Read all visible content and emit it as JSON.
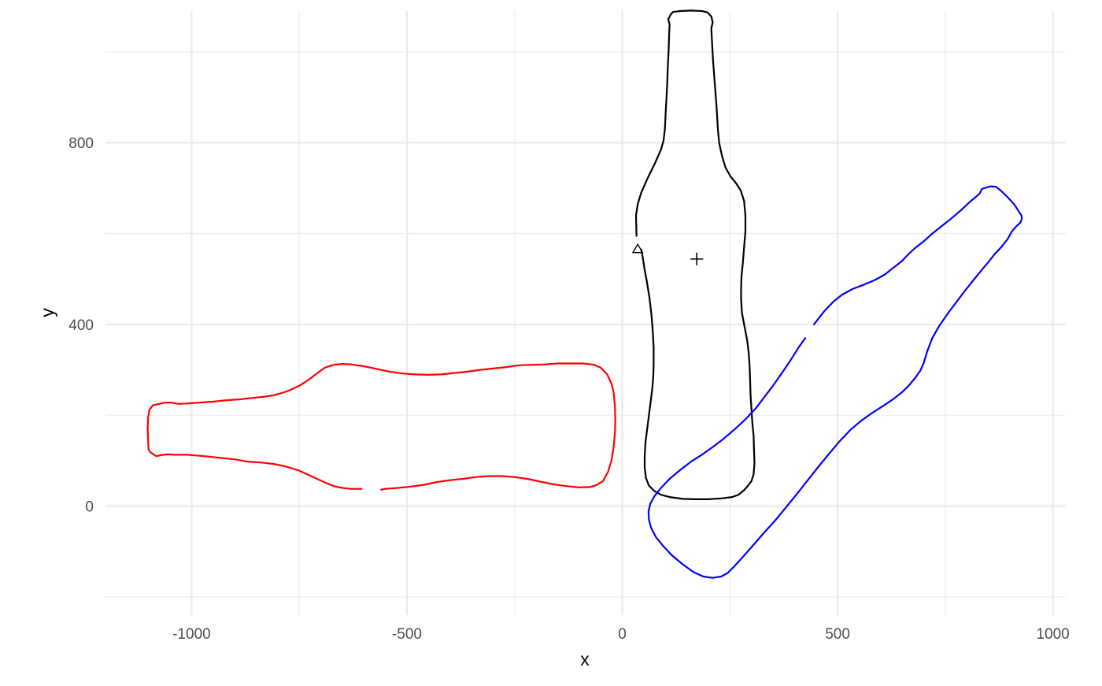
{
  "chart_data": {
    "type": "line",
    "title": "",
    "xlabel": "x",
    "ylabel": "y",
    "xlim": [
      -1200,
      1030
    ],
    "ylim": [
      -240,
      1090
    ],
    "x_ticks": [
      -1000,
      -500,
      0,
      500,
      1000
    ],
    "x_tick_labels": [
      "-1000",
      "-500",
      "0",
      "500",
      "1000"
    ],
    "y_ticks": [
      0,
      400,
      800
    ],
    "y_tick_labels": [
      "0",
      "400",
      "800"
    ],
    "x_minor_ticks": [
      -750,
      -250,
      250,
      750
    ],
    "y_minor_ticks": [
      -200,
      200,
      600,
      1000
    ],
    "grid": true,
    "series": [
      {
        "color": "#000000",
        "points": [
          [
            33,
            595
          ],
          [
            32,
            640
          ],
          [
            36,
            665
          ],
          [
            44,
            690
          ],
          [
            58,
            720
          ],
          [
            76,
            755
          ],
          [
            90,
            785
          ],
          [
            96,
            805
          ],
          [
            99,
            830
          ],
          [
            101,
            870
          ],
          [
            104,
            920
          ],
          [
            106,
            970
          ],
          [
            108,
            1010
          ],
          [
            109,
            1040
          ],
          [
            110,
            1060
          ],
          [
            107,
            1072
          ],
          [
            113,
            1083
          ],
          [
            118,
            1088
          ],
          [
            135,
            1090
          ],
          [
            160,
            1091
          ],
          [
            185,
            1090
          ],
          [
            198,
            1087
          ],
          [
            207,
            1078
          ],
          [
            210,
            1065
          ],
          [
            207,
            1052
          ],
          [
            208,
            1030
          ],
          [
            211,
            980
          ],
          [
            215,
            930
          ],
          [
            219,
            880
          ],
          [
            222,
            830
          ],
          [
            225,
            800
          ],
          [
            232,
            770
          ],
          [
            240,
            745
          ],
          [
            252,
            725
          ],
          [
            265,
            710
          ],
          [
            275,
            695
          ],
          [
            283,
            672
          ],
          [
            286,
            640
          ],
          [
            286,
            605
          ],
          [
            283,
            570
          ],
          [
            280,
            535
          ],
          [
            277,
            505
          ],
          [
            276,
            480
          ],
          [
            276,
            455
          ],
          [
            278,
            425
          ],
          [
            284,
            395
          ],
          [
            290,
            365
          ],
          [
            294,
            335
          ],
          [
            296,
            305
          ],
          [
            297,
            275
          ],
          [
            298,
            245
          ],
          [
            300,
            215
          ],
          [
            302,
            185
          ],
          [
            305,
            155
          ],
          [
            306,
            125
          ],
          [
            307,
            95
          ],
          [
            305,
            70
          ],
          [
            300,
            55
          ],
          [
            292,
            45
          ],
          [
            283,
            35
          ],
          [
            270,
            25
          ],
          [
            255,
            20
          ],
          [
            230,
            17
          ],
          [
            200,
            15
          ],
          [
            170,
            15
          ],
          [
            140,
            16
          ],
          [
            110,
            20
          ],
          [
            90,
            25
          ],
          [
            75,
            33
          ],
          [
            62,
            45
          ],
          [
            55,
            62
          ],
          [
            52,
            85
          ],
          [
            52,
            110
          ],
          [
            54,
            140
          ],
          [
            58,
            170
          ],
          [
            62,
            200
          ],
          [
            66,
            230
          ],
          [
            70,
            260
          ],
          [
            72,
            285
          ],
          [
            73,
            310
          ],
          [
            73,
            350
          ],
          [
            71,
            385
          ],
          [
            68,
            420
          ],
          [
            63,
            460
          ],
          [
            57,
            495
          ],
          [
            52,
            520
          ],
          [
            48,
            545
          ],
          [
            44,
            565
          ]
        ]
      },
      {
        "color": "#ff0000",
        "points": [
          [
            -560,
            36
          ],
          [
            -550,
            38
          ],
          [
            -520,
            40
          ],
          [
            -490,
            43
          ],
          [
            -460,
            47
          ],
          [
            -430,
            53
          ],
          [
            -400,
            57
          ],
          [
            -370,
            60
          ],
          [
            -340,
            64
          ],
          [
            -310,
            66
          ],
          [
            -280,
            66
          ],
          [
            -250,
            64
          ],
          [
            -220,
            60
          ],
          [
            -190,
            54
          ],
          [
            -160,
            48
          ],
          [
            -130,
            44
          ],
          [
            -100,
            41
          ],
          [
            -75,
            42
          ],
          [
            -60,
            46
          ],
          [
            -45,
            55
          ],
          [
            -33,
            75
          ],
          [
            -25,
            100
          ],
          [
            -20,
            130
          ],
          [
            -17,
            160
          ],
          [
            -16,
            190
          ],
          [
            -17,
            220
          ],
          [
            -20,
            250
          ],
          [
            -25,
            270
          ],
          [
            -35,
            290
          ],
          [
            -50,
            305
          ],
          [
            -65,
            311
          ],
          [
            -90,
            314
          ],
          [
            -120,
            314
          ],
          [
            -150,
            314
          ],
          [
            -180,
            312
          ],
          [
            -210,
            311
          ],
          [
            -240,
            310
          ],
          [
            -270,
            306
          ],
          [
            -300,
            303
          ],
          [
            -330,
            300
          ],
          [
            -360,
            296
          ],
          [
            -390,
            293
          ],
          [
            -420,
            290
          ],
          [
            -450,
            289
          ],
          [
            -480,
            290
          ],
          [
            -510,
            292
          ],
          [
            -540,
            296
          ],
          [
            -570,
            302
          ],
          [
            -600,
            308
          ],
          [
            -630,
            312
          ],
          [
            -650,
            313
          ],
          [
            -670,
            311
          ],
          [
            -690,
            305
          ],
          [
            -705,
            295
          ],
          [
            -720,
            284
          ],
          [
            -735,
            274
          ],
          [
            -750,
            265
          ],
          [
            -770,
            256
          ],
          [
            -790,
            249
          ],
          [
            -810,
            244
          ],
          [
            -830,
            241
          ],
          [
            -860,
            238
          ],
          [
            -890,
            235
          ],
          [
            -920,
            233
          ],
          [
            -950,
            230
          ],
          [
            -980,
            228
          ],
          [
            -1010,
            226
          ],
          [
            -1030,
            225
          ],
          [
            -1050,
            228
          ],
          [
            -1060,
            228
          ],
          [
            -1075,
            225
          ],
          [
            -1090,
            222
          ],
          [
            -1098,
            212
          ],
          [
            -1101,
            195
          ],
          [
            -1102,
            170
          ],
          [
            -1101,
            145
          ],
          [
            -1100,
            125
          ],
          [
            -1095,
            118
          ],
          [
            -1082,
            110
          ],
          [
            -1072,
            112
          ],
          [
            -1065,
            113
          ],
          [
            -1055,
            114
          ],
          [
            -1040,
            113
          ],
          [
            -1010,
            113
          ],
          [
            -970,
            110
          ],
          [
            -930,
            106
          ],
          [
            -900,
            103
          ],
          [
            -870,
            98
          ],
          [
            -840,
            96
          ],
          [
            -810,
            93
          ],
          [
            -780,
            87
          ],
          [
            -750,
            78
          ],
          [
            -720,
            65
          ],
          [
            -690,
            52
          ],
          [
            -670,
            44
          ],
          [
            -650,
            40
          ],
          [
            -630,
            38
          ],
          [
            -605,
            38
          ]
        ]
      },
      {
        "color": "#0000ff",
        "points": [
          [
            445,
            400
          ],
          [
            470,
            430
          ],
          [
            490,
            450
          ],
          [
            510,
            465
          ],
          [
            535,
            478
          ],
          [
            560,
            487
          ],
          [
            585,
            497
          ],
          [
            610,
            510
          ],
          [
            630,
            525
          ],
          [
            650,
            540
          ],
          [
            665,
            555
          ],
          [
            680,
            568
          ],
          [
            700,
            583
          ],
          [
            720,
            600
          ],
          [
            740,
            615
          ],
          [
            760,
            630
          ],
          [
            785,
            650
          ],
          [
            805,
            668
          ],
          [
            820,
            680
          ],
          [
            830,
            688
          ],
          [
            835,
            698
          ],
          [
            840,
            700
          ],
          [
            855,
            704
          ],
          [
            868,
            703
          ],
          [
            880,
            694
          ],
          [
            895,
            680
          ],
          [
            910,
            665
          ],
          [
            920,
            650
          ],
          [
            927,
            640
          ],
          [
            928,
            633
          ],
          [
            925,
            625
          ],
          [
            915,
            616
          ],
          [
            905,
            605
          ],
          [
            895,
            588
          ],
          [
            880,
            570
          ],
          [
            865,
            555
          ],
          [
            850,
            537
          ],
          [
            835,
            520
          ],
          [
            815,
            497
          ],
          [
            795,
            473
          ],
          [
            775,
            448
          ],
          [
            755,
            423
          ],
          [
            735,
            395
          ],
          [
            720,
            370
          ],
          [
            708,
            340
          ],
          [
            700,
            315
          ],
          [
            692,
            298
          ],
          [
            680,
            282
          ],
          [
            665,
            265
          ],
          [
            650,
            251
          ],
          [
            630,
            236
          ],
          [
            605,
            220
          ],
          [
            580,
            205
          ],
          [
            555,
            188
          ],
          [
            530,
            168
          ],
          [
            505,
            143
          ],
          [
            480,
            115
          ],
          [
            455,
            86
          ],
          [
            430,
            56
          ],
          [
            405,
            26
          ],
          [
            380,
            -3
          ],
          [
            355,
            -32
          ],
          [
            330,
            -58
          ],
          [
            305,
            -85
          ],
          [
            280,
            -112
          ],
          [
            260,
            -133
          ],
          [
            245,
            -147
          ],
          [
            230,
            -155
          ],
          [
            210,
            -158
          ],
          [
            188,
            -155
          ],
          [
            165,
            -145
          ],
          [
            140,
            -128
          ],
          [
            115,
            -108
          ],
          [
            95,
            -88
          ],
          [
            78,
            -68
          ],
          [
            67,
            -48
          ],
          [
            62,
            -30
          ],
          [
            61,
            -12
          ],
          [
            65,
            5
          ],
          [
            75,
            22
          ],
          [
            90,
            40
          ],
          [
            110,
            60
          ],
          [
            135,
            80
          ],
          [
            160,
            98
          ],
          [
            185,
            113
          ],
          [
            210,
            130
          ],
          [
            235,
            148
          ],
          [
            260,
            168
          ],
          [
            285,
            190
          ],
          [
            310,
            215
          ],
          [
            330,
            240
          ],
          [
            350,
            265
          ],
          [
            370,
            292
          ],
          [
            390,
            320
          ],
          [
            410,
            350
          ],
          [
            425,
            370
          ]
        ]
      }
    ],
    "markers": [
      {
        "shape": "triangle-open",
        "x": 36,
        "y": 565,
        "color": "#000000"
      },
      {
        "shape": "plus",
        "x": 173,
        "y": 544,
        "color": "#000000"
      }
    ]
  }
}
